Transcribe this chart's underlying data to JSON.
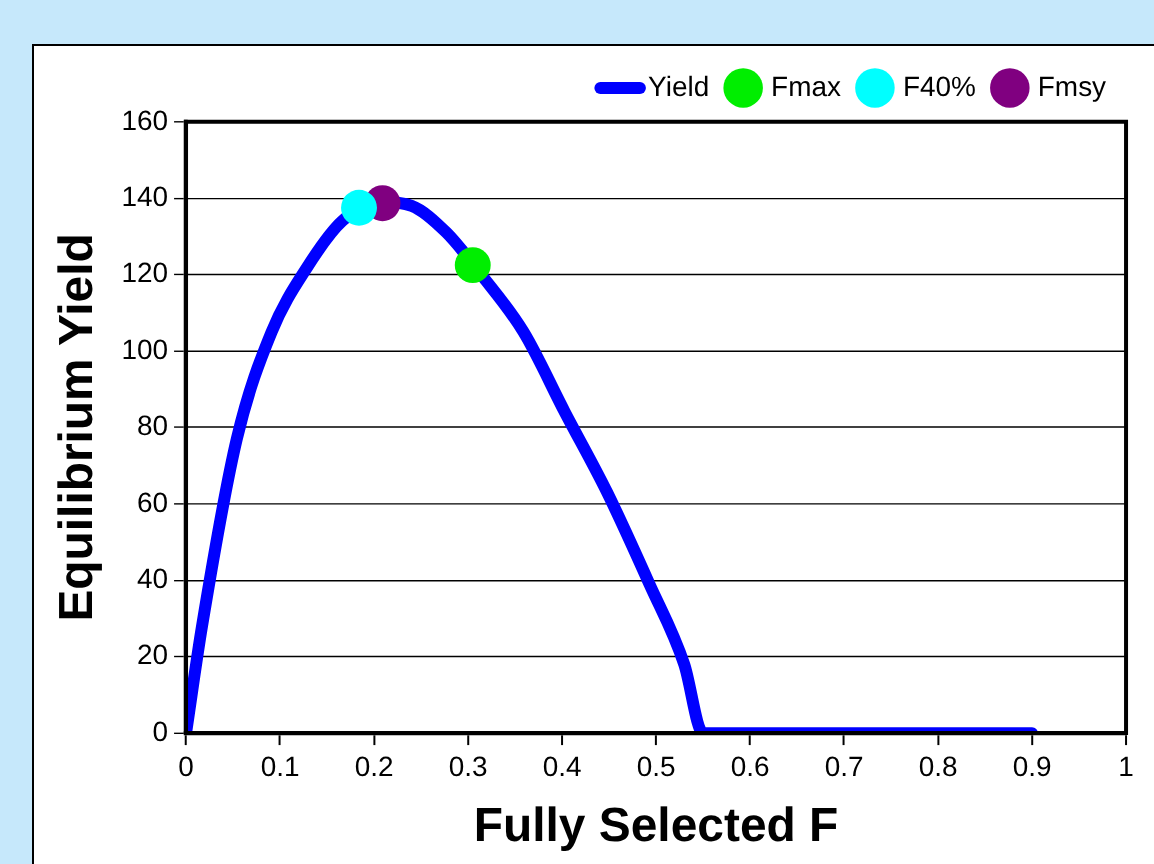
{
  "chart_data": {
    "type": "line",
    "xlabel": "Fully Selected F",
    "ylabel": "Equilibrium Yield",
    "xlim": [
      0,
      1
    ],
    "xticks": [
      0,
      0.1,
      0.2,
      0.3,
      0.4,
      0.5,
      0.6,
      0.7,
      0.8,
      0.9,
      1
    ],
    "ylim": [
      0,
      160
    ],
    "yticks": [
      0,
      20,
      40,
      60,
      80,
      100,
      120,
      140,
      160
    ],
    "grid": "y",
    "legend": "top right",
    "series": [
      {
        "name": "Yield",
        "color": "#0000ff",
        "marker": "none",
        "x": [
          0,
          0.017,
          0.054,
          0.091,
          0.129,
          0.166,
          0.207,
          0.24,
          0.277,
          0.314,
          0.359,
          0.403,
          0.448,
          0.493,
          0.53,
          0.55,
          0.9
        ],
        "values": [
          0,
          28,
          77,
          105,
          122,
          134,
          139,
          138,
          131,
          120,
          105,
          84,
          63,
          39,
          18,
          0,
          0
        ]
      },
      {
        "name": "Fmax",
        "type": "scatter",
        "color": "#00ee00",
        "marker": "circle",
        "x": [
          0.305
        ],
        "values": [
          122.5
        ]
      },
      {
        "name": "F40%",
        "type": "scatter",
        "color": "#00ffff",
        "marker": "circle",
        "x": [
          0.184
        ],
        "values": [
          137.5
        ]
      },
      {
        "name": "Fmsy",
        "type": "scatter",
        "color": "#800080",
        "marker": "circle",
        "x": [
          0.209
        ],
        "values": [
          138.7
        ]
      }
    ]
  }
}
